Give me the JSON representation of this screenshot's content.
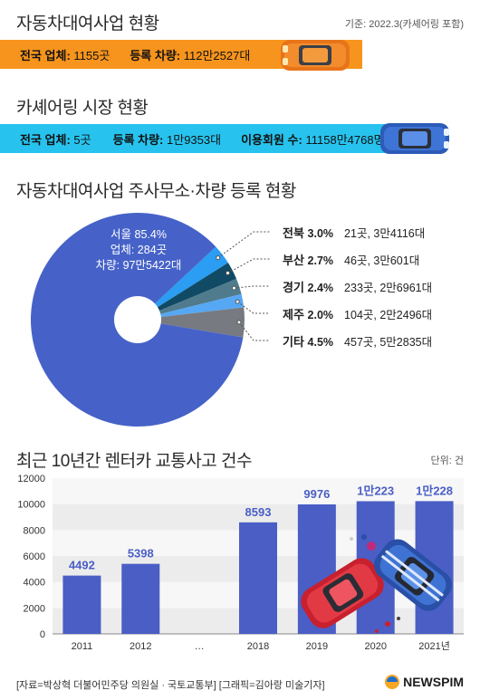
{
  "section1": {
    "title": "자동차대여사업 현황",
    "basis": "기준: 2022.3(카셰어링 포함)",
    "bar_color": "#f7941d",
    "stats": [
      {
        "label": "전국 업체:",
        "value": "1155곳"
      },
      {
        "label": "등록 차량:",
        "value": "112만2527대"
      }
    ]
  },
  "section2": {
    "title": "카셰어링 시장 현황",
    "bar_color": "#27c3ee",
    "stats": [
      {
        "label": "전국 업체:",
        "value": "5곳"
      },
      {
        "label": "등록 차량:",
        "value": "1만9353대"
      },
      {
        "label": "이용회원 수:",
        "value": "11158만4768명"
      }
    ]
  },
  "section3": {
    "title": "자동차대여사업 주사무소·차량 등록 현황",
    "pie": {
      "type": "pie",
      "slices": [
        {
          "name": "서울",
          "pct_label": "85.4%",
          "value": 85.4,
          "color": "#4662c8",
          "line1": "서울 85.4%",
          "line2": "업체: 284곳",
          "line3": "차량: 97만5422대"
        },
        {
          "name": "전북",
          "pct_label": "3.0%",
          "value": 3.0,
          "color": "#2b9df2",
          "detail": "21곳, 3만4116대"
        },
        {
          "name": "부산",
          "pct_label": "2.7%",
          "value": 2.7,
          "color": "#114a64",
          "detail": "46곳, 3만601대"
        },
        {
          "name": "경기",
          "pct_label": "2.4%",
          "value": 2.4,
          "color": "#4f7b8d",
          "detail": "233곳, 2만6961대"
        },
        {
          "name": "제주",
          "pct_label": "2.0%",
          "value": 2.0,
          "color": "#56a7f4",
          "detail": "104곳, 2만2496대"
        },
        {
          "name": "기타",
          "pct_label": "4.5%",
          "value": 4.5,
          "color": "#777a80",
          "detail": "457곳, 5만2835대"
        }
      ]
    }
  },
  "section4": {
    "title": "최근 10년간 렌터카 교통사고 건수",
    "unit": "단위: 건",
    "chart_data": {
      "type": "bar",
      "categories": [
        "2011",
        "2012",
        "…",
        "2018",
        "2019",
        "2020",
        "2021년"
      ],
      "values": [
        4492,
        5398,
        null,
        8593,
        9976,
        10223,
        10228
      ],
      "value_labels": [
        "4492",
        "5398",
        "",
        "8593",
        "9976",
        "1만223",
        "1만228"
      ],
      "ylim": [
        0,
        12000
      ],
      "yticks": [
        0,
        2000,
        4000,
        6000,
        8000,
        10000,
        12000
      ],
      "bar_color": "#4a5ec5",
      "label_color": "#4a5ec5",
      "grid_colors": [
        "#ececec",
        "#f7f7f7"
      ]
    }
  },
  "footer": {
    "source": "[자료=박상혁 더불어민주당 의원실 · 국토교통부] [그래픽=김아랑 미술기자]",
    "logo": "NEWSPIM"
  }
}
